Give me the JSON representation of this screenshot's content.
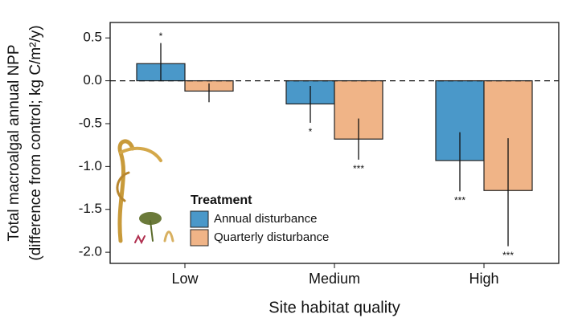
{
  "chart_data": {
    "type": "bar",
    "x_label": "Site habitat quality",
    "y_label": [
      "Total macroalgal annual NPP",
      "(difference from control; kg C/m²/y)"
    ],
    "categories": [
      "Low",
      "Medium",
      "High"
    ],
    "series": [
      {
        "name": "Annual disturbance",
        "color": "#4a98c9",
        "values": [
          0.2,
          -0.27,
          -0.93
        ],
        "lower": [
          0.0,
          -0.49,
          -1.29
        ],
        "upper": [
          0.44,
          -0.06,
          -0.6
        ],
        "significance": [
          "*",
          "*",
          "***"
        ]
      },
      {
        "name": "Quarterly disturbance",
        "color": "#f0b487",
        "values": [
          -0.12,
          -0.68,
          -1.28
        ],
        "lower": [
          -0.25,
          -0.92,
          -1.93
        ],
        "upper": [
          -0.03,
          -0.44,
          -0.67
        ],
        "significance": [
          null,
          "***",
          "***"
        ]
      }
    ],
    "legend_title": "Treatment",
    "legend_position": "lower-left",
    "reference_line": 0,
    "ylim": [
      -2.13,
      0.68
    ],
    "yticks": [
      {
        "value": 0.5,
        "label": "0.5"
      },
      {
        "value": 0,
        "label": "0.0"
      },
      {
        "value": -0.5,
        "label": "-0.5"
      },
      {
        "value": -1,
        "label": "-1.0"
      },
      {
        "value": -1.5,
        "label": "-1.5"
      },
      {
        "value": -2,
        "label": "-2.0"
      }
    ]
  }
}
